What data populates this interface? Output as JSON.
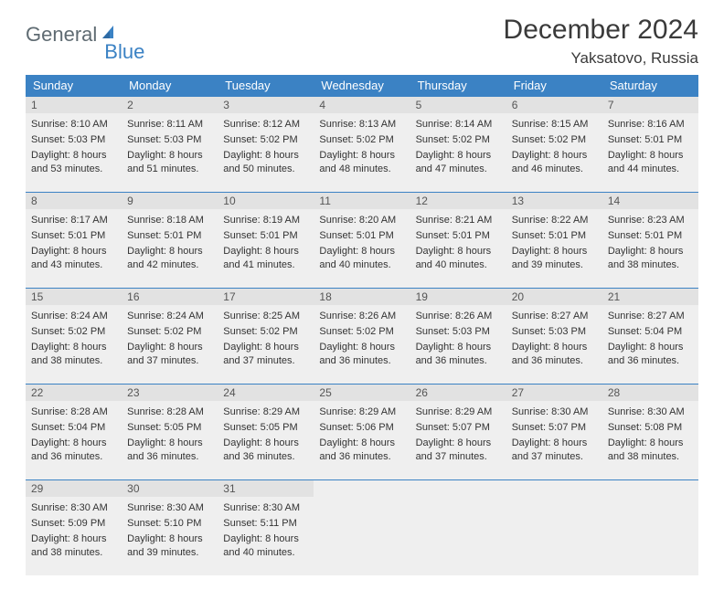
{
  "logo": {
    "text1": "General",
    "text2": "Blue"
  },
  "header": {
    "month_title": "December 2024",
    "location": "Yaksatovo, Russia"
  },
  "colors": {
    "header_bg": "#3b82c4",
    "header_text": "#ffffff",
    "row_border": "#3b82c4",
    "cell_bg": "#efefef",
    "daynum_bg": "#e2e2e2",
    "logo_gray": "#5f6b72",
    "logo_blue": "#3b82c4"
  },
  "weekdays": [
    "Sunday",
    "Monday",
    "Tuesday",
    "Wednesday",
    "Thursday",
    "Friday",
    "Saturday"
  ],
  "days": [
    {
      "n": "1",
      "sunrise": "Sunrise: 8:10 AM",
      "sunset": "Sunset: 5:03 PM",
      "daylight": "Daylight: 8 hours and 53 minutes."
    },
    {
      "n": "2",
      "sunrise": "Sunrise: 8:11 AM",
      "sunset": "Sunset: 5:03 PM",
      "daylight": "Daylight: 8 hours and 51 minutes."
    },
    {
      "n": "3",
      "sunrise": "Sunrise: 8:12 AM",
      "sunset": "Sunset: 5:02 PM",
      "daylight": "Daylight: 8 hours and 50 minutes."
    },
    {
      "n": "4",
      "sunrise": "Sunrise: 8:13 AM",
      "sunset": "Sunset: 5:02 PM",
      "daylight": "Daylight: 8 hours and 48 minutes."
    },
    {
      "n": "5",
      "sunrise": "Sunrise: 8:14 AM",
      "sunset": "Sunset: 5:02 PM",
      "daylight": "Daylight: 8 hours and 47 minutes."
    },
    {
      "n": "6",
      "sunrise": "Sunrise: 8:15 AM",
      "sunset": "Sunset: 5:02 PM",
      "daylight": "Daylight: 8 hours and 46 minutes."
    },
    {
      "n": "7",
      "sunrise": "Sunrise: 8:16 AM",
      "sunset": "Sunset: 5:01 PM",
      "daylight": "Daylight: 8 hours and 44 minutes."
    },
    {
      "n": "8",
      "sunrise": "Sunrise: 8:17 AM",
      "sunset": "Sunset: 5:01 PM",
      "daylight": "Daylight: 8 hours and 43 minutes."
    },
    {
      "n": "9",
      "sunrise": "Sunrise: 8:18 AM",
      "sunset": "Sunset: 5:01 PM",
      "daylight": "Daylight: 8 hours and 42 minutes."
    },
    {
      "n": "10",
      "sunrise": "Sunrise: 8:19 AM",
      "sunset": "Sunset: 5:01 PM",
      "daylight": "Daylight: 8 hours and 41 minutes."
    },
    {
      "n": "11",
      "sunrise": "Sunrise: 8:20 AM",
      "sunset": "Sunset: 5:01 PM",
      "daylight": "Daylight: 8 hours and 40 minutes."
    },
    {
      "n": "12",
      "sunrise": "Sunrise: 8:21 AM",
      "sunset": "Sunset: 5:01 PM",
      "daylight": "Daylight: 8 hours and 40 minutes."
    },
    {
      "n": "13",
      "sunrise": "Sunrise: 8:22 AM",
      "sunset": "Sunset: 5:01 PM",
      "daylight": "Daylight: 8 hours and 39 minutes."
    },
    {
      "n": "14",
      "sunrise": "Sunrise: 8:23 AM",
      "sunset": "Sunset: 5:01 PM",
      "daylight": "Daylight: 8 hours and 38 minutes."
    },
    {
      "n": "15",
      "sunrise": "Sunrise: 8:24 AM",
      "sunset": "Sunset: 5:02 PM",
      "daylight": "Daylight: 8 hours and 38 minutes."
    },
    {
      "n": "16",
      "sunrise": "Sunrise: 8:24 AM",
      "sunset": "Sunset: 5:02 PM",
      "daylight": "Daylight: 8 hours and 37 minutes."
    },
    {
      "n": "17",
      "sunrise": "Sunrise: 8:25 AM",
      "sunset": "Sunset: 5:02 PM",
      "daylight": "Daylight: 8 hours and 37 minutes."
    },
    {
      "n": "18",
      "sunrise": "Sunrise: 8:26 AM",
      "sunset": "Sunset: 5:02 PM",
      "daylight": "Daylight: 8 hours and 36 minutes."
    },
    {
      "n": "19",
      "sunrise": "Sunrise: 8:26 AM",
      "sunset": "Sunset: 5:03 PM",
      "daylight": "Daylight: 8 hours and 36 minutes."
    },
    {
      "n": "20",
      "sunrise": "Sunrise: 8:27 AM",
      "sunset": "Sunset: 5:03 PM",
      "daylight": "Daylight: 8 hours and 36 minutes."
    },
    {
      "n": "21",
      "sunrise": "Sunrise: 8:27 AM",
      "sunset": "Sunset: 5:04 PM",
      "daylight": "Daylight: 8 hours and 36 minutes."
    },
    {
      "n": "22",
      "sunrise": "Sunrise: 8:28 AM",
      "sunset": "Sunset: 5:04 PM",
      "daylight": "Daylight: 8 hours and 36 minutes."
    },
    {
      "n": "23",
      "sunrise": "Sunrise: 8:28 AM",
      "sunset": "Sunset: 5:05 PM",
      "daylight": "Daylight: 8 hours and 36 minutes."
    },
    {
      "n": "24",
      "sunrise": "Sunrise: 8:29 AM",
      "sunset": "Sunset: 5:05 PM",
      "daylight": "Daylight: 8 hours and 36 minutes."
    },
    {
      "n": "25",
      "sunrise": "Sunrise: 8:29 AM",
      "sunset": "Sunset: 5:06 PM",
      "daylight": "Daylight: 8 hours and 36 minutes."
    },
    {
      "n": "26",
      "sunrise": "Sunrise: 8:29 AM",
      "sunset": "Sunset: 5:07 PM",
      "daylight": "Daylight: 8 hours and 37 minutes."
    },
    {
      "n": "27",
      "sunrise": "Sunrise: 8:30 AM",
      "sunset": "Sunset: 5:07 PM",
      "daylight": "Daylight: 8 hours and 37 minutes."
    },
    {
      "n": "28",
      "sunrise": "Sunrise: 8:30 AM",
      "sunset": "Sunset: 5:08 PM",
      "daylight": "Daylight: 8 hours and 38 minutes."
    },
    {
      "n": "29",
      "sunrise": "Sunrise: 8:30 AM",
      "sunset": "Sunset: 5:09 PM",
      "daylight": "Daylight: 8 hours and 38 minutes."
    },
    {
      "n": "30",
      "sunrise": "Sunrise: 8:30 AM",
      "sunset": "Sunset: 5:10 PM",
      "daylight": "Daylight: 8 hours and 39 minutes."
    },
    {
      "n": "31",
      "sunrise": "Sunrise: 8:30 AM",
      "sunset": "Sunset: 5:11 PM",
      "daylight": "Daylight: 8 hours and 40 minutes."
    }
  ]
}
